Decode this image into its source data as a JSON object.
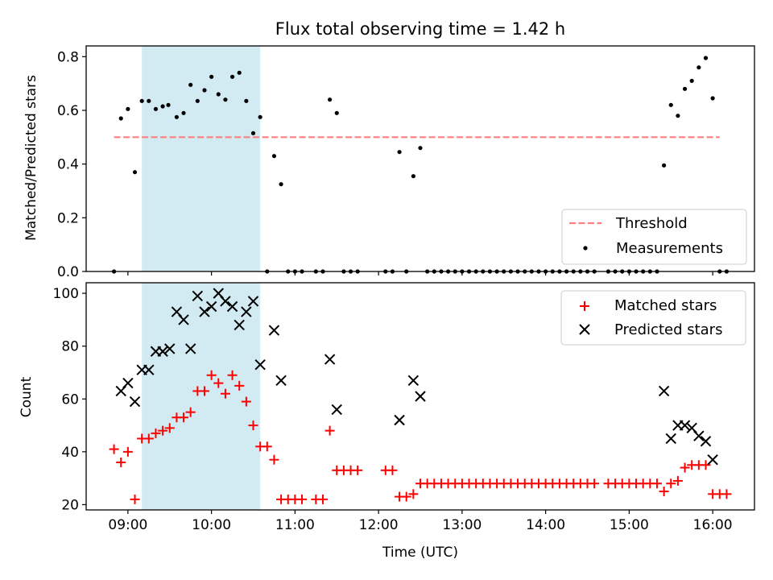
{
  "chart_data": [
    {
      "type": "scatter",
      "title": "Flux total observing time = 1.42 h",
      "ylabel": "Matched/Predicted stars",
      "xlim": [
        "08:30",
        "16:30"
      ],
      "ylim": [
        0,
        0.84
      ],
      "x_ticks": [
        "09:00",
        "10:00",
        "11:00",
        "12:00",
        "13:00",
        "14:00",
        "15:00",
        "16:00"
      ],
      "y_ticks": [
        "0.0",
        "0.2",
        "0.4",
        "0.6",
        "0.8"
      ],
      "highlight_span": {
        "start": "09:10",
        "end": "10:35",
        "color": "#add8e6"
      },
      "threshold": {
        "name": "Threshold",
        "value": 0.5,
        "x_start": "08:50",
        "x_end": "16:05",
        "color": "#ff7f7f"
      },
      "legend_position": "bottom-right",
      "series": [
        {
          "name": "Measurements",
          "color": "#000000",
          "points": [
            [
              "08:50",
              0.0
            ],
            [
              "08:55",
              0.57
            ],
            [
              "09:00",
              0.605
            ],
            [
              "09:05",
              0.37
            ],
            [
              "09:10",
              0.635
            ],
            [
              "09:15",
              0.635
            ],
            [
              "09:20",
              0.605
            ],
            [
              "09:25",
              0.615
            ],
            [
              "09:29",
              0.62
            ],
            [
              "09:35",
              0.575
            ],
            [
              "09:40",
              0.59
            ],
            [
              "09:45",
              0.695
            ],
            [
              "09:50",
              0.635
            ],
            [
              "09:55",
              0.675
            ],
            [
              "10:00",
              0.725
            ],
            [
              "10:05",
              0.66
            ],
            [
              "10:10",
              0.64
            ],
            [
              "10:15",
              0.725
            ],
            [
              "10:20",
              0.74
            ],
            [
              "10:25",
              0.635
            ],
            [
              "10:30",
              0.515
            ],
            [
              "10:35",
              0.575
            ],
            [
              "10:40",
              0.0
            ],
            [
              "10:45",
              0.43
            ],
            [
              "10:50",
              0.325
            ],
            [
              "10:55",
              0.0
            ],
            [
              "11:00",
              0.0
            ],
            [
              "11:05",
              0.0
            ],
            [
              "11:15",
              0.0
            ],
            [
              "11:20",
              0.0
            ],
            [
              "11:25",
              0.64
            ],
            [
              "11:30",
              0.59
            ],
            [
              "11:35",
              0.0
            ],
            [
              "11:40",
              0.0
            ],
            [
              "11:45",
              0.0
            ],
            [
              "12:05",
              0.0
            ],
            [
              "12:10",
              0.0
            ],
            [
              "12:15",
              0.445
            ],
            [
              "12:20",
              0.0
            ],
            [
              "12:25",
              0.355
            ],
            [
              "12:30",
              0.46
            ],
            [
              "12:35",
              0.0
            ],
            [
              "12:40",
              0.0
            ],
            [
              "12:45",
              0.0
            ],
            [
              "12:50",
              0.0
            ],
            [
              "12:55",
              0.0
            ],
            [
              "13:00",
              0.0
            ],
            [
              "13:05",
              0.0
            ],
            [
              "13:10",
              0.0
            ],
            [
              "13:15",
              0.0
            ],
            [
              "13:20",
              0.0
            ],
            [
              "13:25",
              0.0
            ],
            [
              "13:30",
              0.0
            ],
            [
              "13:35",
              0.0
            ],
            [
              "13:40",
              0.0
            ],
            [
              "13:45",
              0.0
            ],
            [
              "13:50",
              0.0
            ],
            [
              "13:55",
              0.0
            ],
            [
              "14:00",
              0.0
            ],
            [
              "14:05",
              0.0
            ],
            [
              "14:10",
              0.0
            ],
            [
              "14:15",
              0.0
            ],
            [
              "14:20",
              0.0
            ],
            [
              "14:25",
              0.0
            ],
            [
              "14:30",
              0.0
            ],
            [
              "14:35",
              0.0
            ],
            [
              "14:45",
              0.0
            ],
            [
              "14:50",
              0.0
            ],
            [
              "14:55",
              0.0
            ],
            [
              "15:00",
              0.0
            ],
            [
              "15:05",
              0.0
            ],
            [
              "15:10",
              0.0
            ],
            [
              "15:15",
              0.0
            ],
            [
              "15:20",
              0.0
            ],
            [
              "15:25",
              0.395
            ],
            [
              "15:30",
              0.62
            ],
            [
              "15:35",
              0.58
            ],
            [
              "15:40",
              0.68
            ],
            [
              "15:45",
              0.71
            ],
            [
              "15:50",
              0.76
            ],
            [
              "15:55",
              0.795
            ],
            [
              "16:00",
              0.645
            ],
            [
              "16:05",
              0.0
            ],
            [
              "16:10",
              0.0
            ]
          ]
        }
      ]
    },
    {
      "type": "scatter",
      "xlabel": "Time (UTC)",
      "ylabel": "Count",
      "xlim": [
        "08:30",
        "16:30"
      ],
      "ylim": [
        18,
        104
      ],
      "x_ticks": [
        "09:00",
        "10:00",
        "11:00",
        "12:00",
        "13:00",
        "14:00",
        "15:00",
        "16:00"
      ],
      "y_ticks": [
        "20",
        "40",
        "60",
        "80",
        "100"
      ],
      "highlight_span": {
        "start": "09:10",
        "end": "10:35",
        "color": "#add8e6"
      },
      "legend_position": "top-right",
      "series": [
        {
          "name": "Matched stars",
          "marker": "+",
          "color": "#ff0000",
          "points": [
            [
              "08:50",
              41
            ],
            [
              "08:55",
              36
            ],
            [
              "09:00",
              40
            ],
            [
              "09:05",
              22
            ],
            [
              "09:10",
              45
            ],
            [
              "09:15",
              45
            ],
            [
              "09:20",
              47
            ],
            [
              "09:25",
              48
            ],
            [
              "09:30",
              49
            ],
            [
              "09:35",
              53
            ],
            [
              "09:40",
              53
            ],
            [
              "09:45",
              55
            ],
            [
              "09:50",
              63
            ],
            [
              "09:55",
              63
            ],
            [
              "10:00",
              69
            ],
            [
              "10:05",
              66
            ],
            [
              "10:10",
              62
            ],
            [
              "10:15",
              69
            ],
            [
              "10:20",
              65
            ],
            [
              "10:25",
              59
            ],
            [
              "10:30",
              50
            ],
            [
              "10:35",
              42
            ],
            [
              "10:40",
              42
            ],
            [
              "10:45",
              37
            ],
            [
              "10:50",
              22
            ],
            [
              "10:55",
              22
            ],
            [
              "11:00",
              22
            ],
            [
              "11:05",
              22
            ],
            [
              "11:15",
              22
            ],
            [
              "11:20",
              22
            ],
            [
              "11:25",
              48
            ],
            [
              "11:30",
              33
            ],
            [
              "11:35",
              33
            ],
            [
              "11:40",
              33
            ],
            [
              "11:45",
              33
            ],
            [
              "12:05",
              33
            ],
            [
              "12:10",
              33
            ],
            [
              "12:15",
              23
            ],
            [
              "12:20",
              23
            ],
            [
              "12:25",
              24
            ],
            [
              "12:30",
              28
            ],
            [
              "12:35",
              28
            ],
            [
              "12:40",
              28
            ],
            [
              "12:45",
              28
            ],
            [
              "12:50",
              28
            ],
            [
              "12:55",
              28
            ],
            [
              "13:00",
              28
            ],
            [
              "13:05",
              28
            ],
            [
              "13:10",
              28
            ],
            [
              "13:15",
              28
            ],
            [
              "13:20",
              28
            ],
            [
              "13:25",
              28
            ],
            [
              "13:30",
              28
            ],
            [
              "13:35",
              28
            ],
            [
              "13:40",
              28
            ],
            [
              "13:45",
              28
            ],
            [
              "13:50",
              28
            ],
            [
              "13:55",
              28
            ],
            [
              "14:00",
              28
            ],
            [
              "14:05",
              28
            ],
            [
              "14:10",
              28
            ],
            [
              "14:15",
              28
            ],
            [
              "14:20",
              28
            ],
            [
              "14:25",
              28
            ],
            [
              "14:30",
              28
            ],
            [
              "14:35",
              28
            ],
            [
              "14:45",
              28
            ],
            [
              "14:50",
              28
            ],
            [
              "14:55",
              28
            ],
            [
              "15:00",
              28
            ],
            [
              "15:05",
              28
            ],
            [
              "15:10",
              28
            ],
            [
              "15:15",
              28
            ],
            [
              "15:20",
              28
            ],
            [
              "15:25",
              25
            ],
            [
              "15:30",
              28
            ],
            [
              "15:35",
              29
            ],
            [
              "15:40",
              34
            ],
            [
              "15:45",
              35
            ],
            [
              "15:50",
              35
            ],
            [
              "15:55",
              35
            ],
            [
              "16:00",
              24
            ],
            [
              "16:05",
              24
            ],
            [
              "16:10",
              24
            ]
          ]
        },
        {
          "name": "Predicted stars",
          "marker": "x",
          "color": "#000000",
          "points": [
            [
              "08:55",
              63
            ],
            [
              "09:00",
              66
            ],
            [
              "09:05",
              59
            ],
            [
              "09:10",
              71
            ],
            [
              "09:15",
              71
            ],
            [
              "09:20",
              78
            ],
            [
              "09:25",
              78
            ],
            [
              "09:30",
              79
            ],
            [
              "09:35",
              93
            ],
            [
              "09:40",
              90
            ],
            [
              "09:45",
              79
            ],
            [
              "09:50",
              99
            ],
            [
              "09:55",
              93
            ],
            [
              "10:00",
              95
            ],
            [
              "10:05",
              100
            ],
            [
              "10:10",
              97
            ],
            [
              "10:15",
              95
            ],
            [
              "10:20",
              88
            ],
            [
              "10:25",
              93
            ],
            [
              "10:30",
              97
            ],
            [
              "10:35",
              73
            ],
            [
              "10:45",
              86
            ],
            [
              "10:50",
              67
            ],
            [
              "11:25",
              75
            ],
            [
              "11:30",
              56
            ],
            [
              "12:15",
              52
            ],
            [
              "12:25",
              67
            ],
            [
              "12:30",
              61
            ],
            [
              "15:25",
              63
            ],
            [
              "15:30",
              45
            ],
            [
              "15:35",
              50
            ],
            [
              "15:40",
              50
            ],
            [
              "15:45",
              49
            ],
            [
              "15:50",
              46
            ],
            [
              "15:55",
              44
            ],
            [
              "16:00",
              37
            ]
          ]
        }
      ]
    }
  ]
}
